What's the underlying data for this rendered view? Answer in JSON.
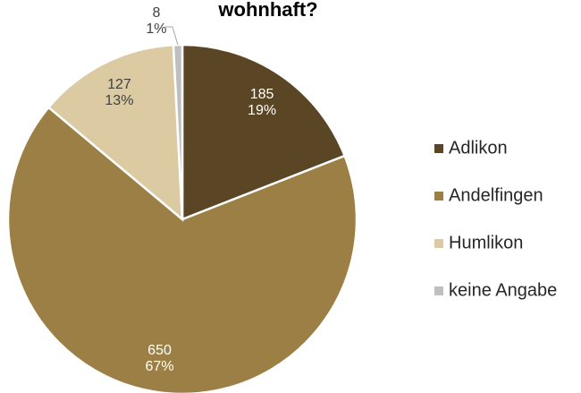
{
  "chart_data": {
    "type": "pie",
    "title": "wohnhaft?",
    "categories": [
      "Adlikon",
      "Andelfingen",
      "Humlikon",
      "keine Angabe"
    ],
    "values": [
      185,
      650,
      127,
      8
    ],
    "percent_labels": [
      "19%",
      "67%",
      "13%",
      "1%"
    ],
    "colors": [
      "#5a4524",
      "#9c7f45",
      "#dccaa2",
      "#bfbfbf"
    ],
    "legend": "right"
  }
}
